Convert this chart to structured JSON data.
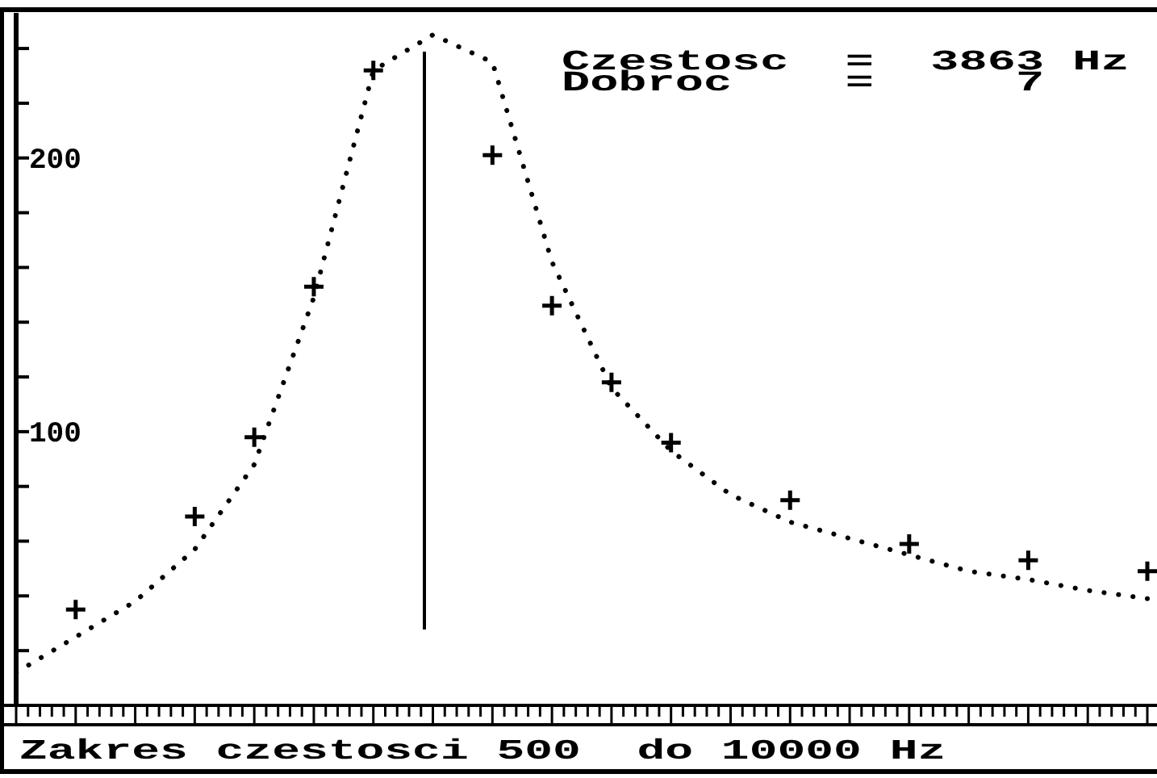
{
  "chart_data": {
    "type": "scatter",
    "xlabel": "Zakres czestosci 500  do 10000 Hz",
    "annotations": [
      "Czestosc  =  3863 Hz",
      "Dobroc    =     7"
    ],
    "categories": [
      null,
      null,
      null,
      null,
      null,
      null,
      null,
      null,
      null,
      null,
      null,
      null,
      null,
      null,
      null,
      null,
      null,
      null,
      null,
      null
    ],
    "ylim": [
      0,
      253
    ],
    "yticks": [
      {
        "value": 20,
        "label": null
      },
      {
        "value": 40,
        "label": null
      },
      {
        "value": 60,
        "label": null
      },
      {
        "value": 80,
        "label": null
      },
      100,
      {
        "value": 120,
        "label": null
      },
      {
        "value": 140,
        "label": null
      },
      {
        "value": 160,
        "label": null
      },
      {
        "value": 180,
        "label": null
      },
      200,
      {
        "value": 220,
        "label": null
      },
      {
        "value": 240,
        "label": null
      }
    ],
    "grid": false,
    "series": [
      {
        "marker": "cross",
        "color": "#000000",
        "values": [
          null,
          35,
          null,
          69,
          98,
          153,
          232,
          null,
          201,
          146,
          118,
          96,
          null,
          75,
          null,
          59,
          null,
          53,
          null,
          49
        ]
      },
      {
        "type": "line",
        "marker": "none",
        "line_style": "dotted",
        "color": "#000000",
        "values": [
          12,
          25,
          38,
          57,
          88,
          149,
          232,
          245,
          235,
          162,
          116,
          93,
          77,
          67,
          61,
          55,
          49,
          46,
          42,
          39
        ]
      }
    ]
  }
}
